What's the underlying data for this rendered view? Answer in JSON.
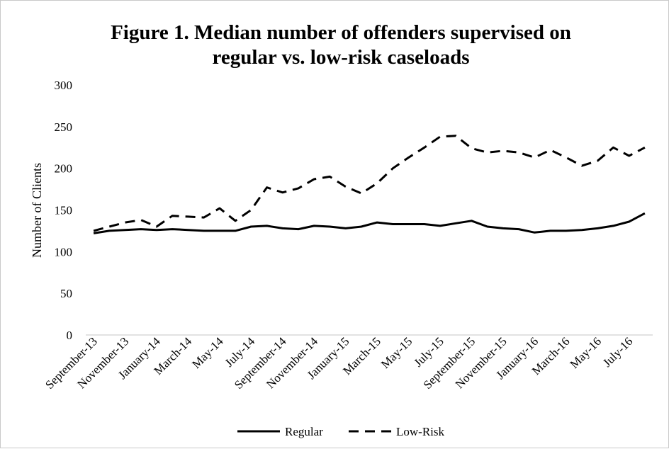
{
  "chart_data": {
    "type": "line",
    "title_lines": [
      "Figure 1. Median number of offenders supervised on",
      "regular vs. low-risk caseloads"
    ],
    "ylabel": "Number of Clients",
    "xlabel": "",
    "ylim": [
      0,
      300
    ],
    "yticks": [
      0,
      50,
      100,
      150,
      200,
      250,
      300
    ],
    "grid": false,
    "legend_position": "bottom",
    "x_tick_labels": [
      "September-13",
      "November-13",
      "January-14",
      "March-14",
      "May-14",
      "July-14",
      "September-14",
      "November-14",
      "January-15",
      "March-15",
      "May-15",
      "July-15",
      "September-15",
      "November-15",
      "January-16",
      "March-16",
      "May-16",
      "July-16"
    ],
    "x": [
      "Sep-13",
      "Oct-13",
      "Nov-13",
      "Dec-13",
      "Jan-14",
      "Feb-14",
      "Mar-14",
      "Apr-14",
      "May-14",
      "Jun-14",
      "Jul-14",
      "Aug-14",
      "Sep-14",
      "Oct-14",
      "Nov-14",
      "Dec-14",
      "Jan-15",
      "Feb-15",
      "Mar-15",
      "Apr-15",
      "May-15",
      "Jun-15",
      "Jul-15",
      "Aug-15",
      "Sep-15",
      "Oct-15",
      "Nov-15",
      "Dec-15",
      "Jan-16",
      "Feb-16",
      "Mar-16",
      "Apr-16",
      "May-16",
      "Jun-16",
      "Jul-16",
      "Aug-16"
    ],
    "series": [
      {
        "name": "Regular",
        "style": "solid",
        "color": "#000000",
        "values": [
          122,
          125,
          126,
          127,
          126,
          127,
          126,
          125,
          125,
          125,
          130,
          131,
          128,
          127,
          131,
          130,
          128,
          130,
          135,
          133,
          133,
          133,
          131,
          134,
          137,
          130,
          128,
          127,
          123,
          125,
          125,
          126,
          128,
          131,
          136,
          146
        ]
      },
      {
        "name": "Low-Risk",
        "style": "dashed",
        "color": "#000000",
        "values": [
          125,
          130,
          135,
          138,
          130,
          143,
          142,
          141,
          152,
          137,
          150,
          177,
          171,
          176,
          187,
          190,
          178,
          170,
          182,
          200,
          213,
          225,
          238,
          239,
          224,
          219,
          221,
          219,
          213,
          222,
          213,
          203,
          209,
          225,
          215,
          225
        ]
      }
    ]
  }
}
